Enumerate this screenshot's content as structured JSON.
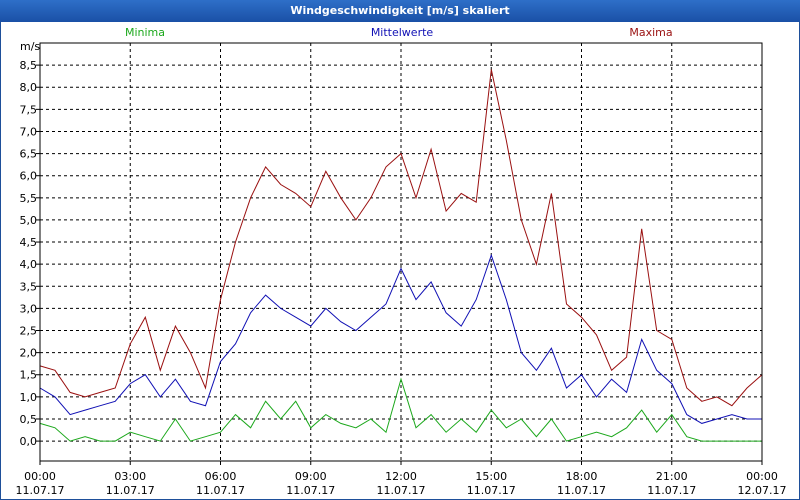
{
  "window": {
    "title": "Windgeschwindigkeit [m/s] skaliert"
  },
  "chart_data": {
    "type": "line",
    "title": "Windgeschwindigkeit [m/s] skaliert",
    "ylabel": "m/s",
    "ylim": [
      -0.45,
      9.0
    ],
    "yticks": [
      0,
      0.5,
      1,
      1.5,
      2,
      2.5,
      3,
      3.5,
      4,
      4.5,
      5,
      5.5,
      6,
      6.5,
      7,
      7.5,
      8,
      8.5
    ],
    "ytick_labels": [
      "0,0",
      "0,5",
      "1,0",
      "1,5",
      "2,0",
      "2,5",
      "3,0",
      "3,5",
      "4,0",
      "4,5",
      "5,0",
      "5,5",
      "6,0",
      "6,5",
      "7,0",
      "7,5",
      "8,0",
      "8,5"
    ],
    "xlim": [
      0,
      24
    ],
    "xticks": [
      0,
      3,
      6,
      9,
      12,
      15,
      18,
      21,
      24
    ],
    "xtick_time_labels": [
      "00:00",
      "03:00",
      "06:00",
      "09:00",
      "12:00",
      "15:00",
      "18:00",
      "21:00",
      "00:00"
    ],
    "xtick_date_labels": [
      "11.07.17",
      "11.07.17",
      "11.07.17",
      "11.07.17",
      "11.07.17",
      "11.07.17",
      "11.07.17",
      "11.07.17",
      "12.07.17"
    ],
    "grid": true,
    "legend": [
      "Minima",
      "Mittelwerte",
      "Maxima"
    ],
    "series": [
      {
        "name": "Minima",
        "color": "#1ca81c",
        "x": [
          0,
          0.5,
          1,
          1.5,
          2,
          2.5,
          3,
          3.5,
          4,
          4.5,
          5,
          5.5,
          6,
          6.5,
          7,
          7.5,
          8,
          8.5,
          9,
          9.5,
          10,
          10.5,
          11,
          11.5,
          12,
          12.5,
          13,
          13.5,
          14,
          14.5,
          15,
          15.5,
          16,
          16.5,
          17,
          17.5,
          18,
          18.5,
          19,
          19.5,
          20,
          20.5,
          21,
          21.5,
          22,
          22.5,
          23,
          23.5,
          24
        ],
        "values": [
          0.4,
          0.3,
          0,
          0.1,
          0,
          0,
          0.2,
          0.1,
          0,
          0.5,
          0,
          0.1,
          0.2,
          0.6,
          0.3,
          0.9,
          0.5,
          0.9,
          0.3,
          0.6,
          0.4,
          0.3,
          0.5,
          0.2,
          1.4,
          0.3,
          0.6,
          0.2,
          0.5,
          0.2,
          0.7,
          0.3,
          0.5,
          0.1,
          0.5,
          0,
          0.1,
          0.2,
          0.1,
          0.3,
          0.7,
          0.2,
          0.6,
          0.1,
          0,
          0,
          0,
          0,
          0
        ]
      },
      {
        "name": "Mittelwerte",
        "color": "#1010b4",
        "x": [
          0,
          0.5,
          1,
          1.5,
          2,
          2.5,
          3,
          3.5,
          4,
          4.5,
          5,
          5.5,
          6,
          6.5,
          7,
          7.5,
          8,
          8.5,
          9,
          9.5,
          10,
          10.5,
          11,
          11.5,
          12,
          12.5,
          13,
          13.5,
          14,
          14.5,
          15,
          15.5,
          16,
          16.5,
          17,
          17.5,
          18,
          18.5,
          19,
          19.5,
          20,
          20.5,
          21,
          21.5,
          22,
          22.5,
          23,
          23.5,
          24
        ],
        "values": [
          1.2,
          1.0,
          0.6,
          0.7,
          0.8,
          0.9,
          1.3,
          1.5,
          1.0,
          1.4,
          0.9,
          0.8,
          1.8,
          2.2,
          2.9,
          3.3,
          3.0,
          2.8,
          2.6,
          3.0,
          2.7,
          2.5,
          2.8,
          3.1,
          3.9,
          3.2,
          3.6,
          2.9,
          2.6,
          3.2,
          4.2,
          3.2,
          2.0,
          1.6,
          2.1,
          1.2,
          1.5,
          1.0,
          1.4,
          1.1,
          2.3,
          1.6,
          1.3,
          0.6,
          0.4,
          0.5,
          0.6,
          0.5,
          0.5
        ]
      },
      {
        "name": "Maxima",
        "color": "#9a1010",
        "x": [
          0,
          0.5,
          1,
          1.5,
          2,
          2.5,
          3,
          3.5,
          4,
          4.5,
          5,
          5.5,
          6,
          6.5,
          7,
          7.5,
          8,
          8.5,
          9,
          9.5,
          10,
          10.5,
          11,
          11.5,
          12,
          12.5,
          13,
          13.5,
          14,
          14.5,
          15,
          15.5,
          16,
          16.5,
          17,
          17.5,
          18,
          18.5,
          19,
          19.5,
          20,
          20.5,
          21,
          21.5,
          22,
          22.5,
          23,
          23.5,
          24
        ],
        "values": [
          1.7,
          1.6,
          1.1,
          1.0,
          1.1,
          1.2,
          2.2,
          2.8,
          1.6,
          2.6,
          2.0,
          1.2,
          3.2,
          4.5,
          5.5,
          6.2,
          5.8,
          5.6,
          5.3,
          6.1,
          5.5,
          5.0,
          5.5,
          6.2,
          6.5,
          5.5,
          6.6,
          5.2,
          5.6,
          5.4,
          8.4,
          6.8,
          5.0,
          4.0,
          5.6,
          3.1,
          2.8,
          2.4,
          1.6,
          1.9,
          4.8,
          2.5,
          2.3,
          1.2,
          0.9,
          1.0,
          0.8,
          1.2,
          1.5
        ]
      }
    ]
  }
}
